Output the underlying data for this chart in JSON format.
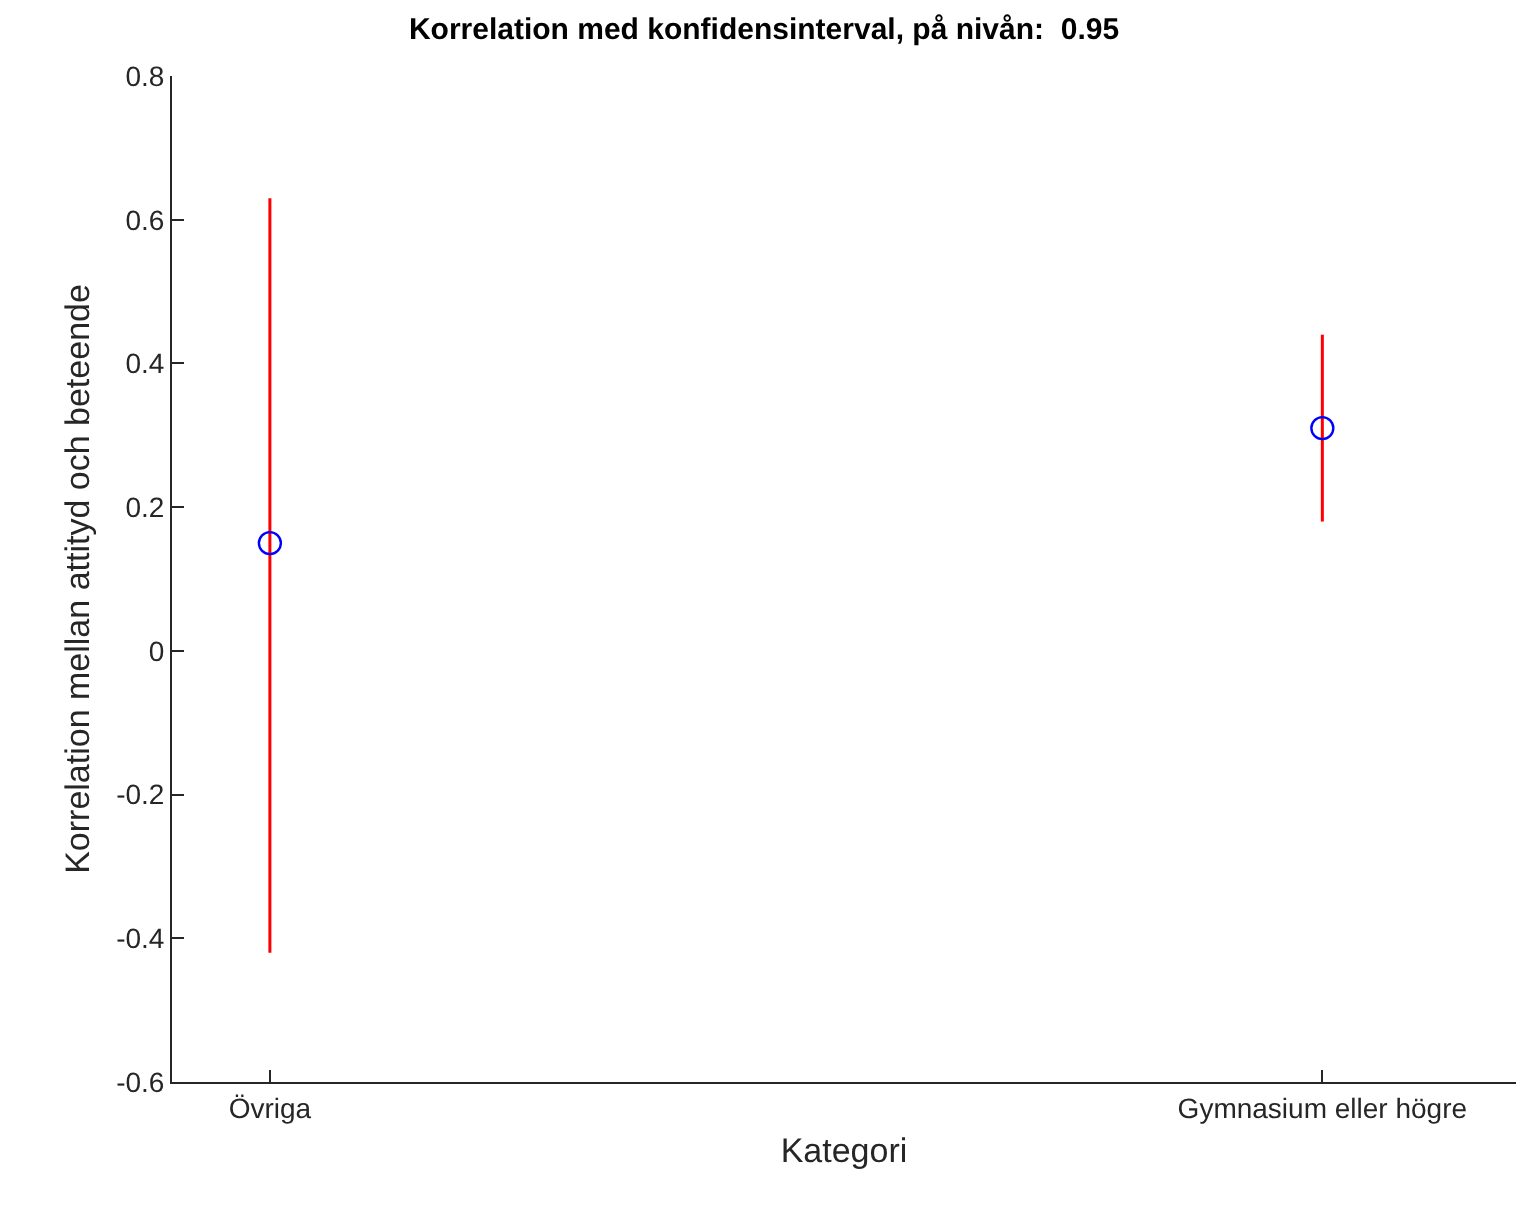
{
  "chart_data": {
    "type": "scatter",
    "title": "Korrelation med konfidensinterval, på nivån:  0.95",
    "xlabel": "Kategori",
    "ylabel": "Korrelation mellan attityd och beteende",
    "categories": [
      "Övriga",
      "Gymnasium eller högre"
    ],
    "series": [
      {
        "color": "#0000ff",
        "values": [
          0.15,
          0.31
        ],
        "errors": [
          [
            -0.42,
            0.63
          ],
          [
            0.18,
            0.44
          ]
        ]
      }
    ],
    "ylim": [
      -0.6,
      0.8
    ],
    "yticks": [
      -0.6,
      -0.4,
      -0.2,
      0,
      0.2,
      0.4,
      0.6,
      0.8
    ],
    "marker": "circle"
  }
}
